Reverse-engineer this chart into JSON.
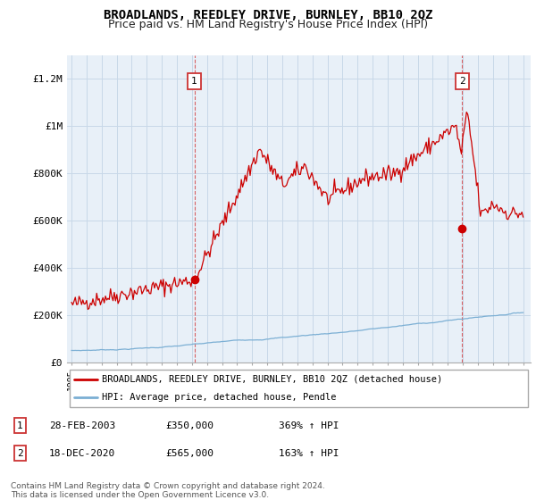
{
  "title": "BROADLANDS, REEDLEY DRIVE, BURNLEY, BB10 2QZ",
  "subtitle": "Price paid vs. HM Land Registry's House Price Index (HPI)",
  "ylabel_ticks": [
    "£0",
    "£200K",
    "£400K",
    "£600K",
    "£800K",
    "£1M",
    "£1.2M"
  ],
  "ytick_values": [
    0,
    200000,
    400000,
    600000,
    800000,
    1000000,
    1200000
  ],
  "ylim": [
    0,
    1300000
  ],
  "xlim_start": 1994.7,
  "xlim_end": 2025.5,
  "red_color": "#cc0000",
  "blue_color": "#7bafd4",
  "plot_bg_color": "#e8f0f8",
  "marker1_date": 2003.16,
  "marker1_value": 350000,
  "marker1_label": "1",
  "marker2_date": 2020.96,
  "marker2_value": 565000,
  "marker2_label": "2",
  "legend_red_label": "BROADLANDS, REEDLEY DRIVE, BURNLEY, BB10 2QZ (detached house)",
  "legend_blue_label": "HPI: Average price, detached house, Pendle",
  "table_rows": [
    {
      "num": "1",
      "date": "28-FEB-2003",
      "price": "£350,000",
      "hpi": "369% ↑ HPI"
    },
    {
      "num": "2",
      "date": "18-DEC-2020",
      "price": "£565,000",
      "hpi": "163% ↑ HPI"
    }
  ],
  "footer": "Contains HM Land Registry data © Crown copyright and database right 2024.\nThis data is licensed under the Open Government Licence v3.0.",
  "grid_color": "#c8d8e8",
  "title_fontsize": 10,
  "subtitle_fontsize": 9,
  "tick_fontsize": 8
}
